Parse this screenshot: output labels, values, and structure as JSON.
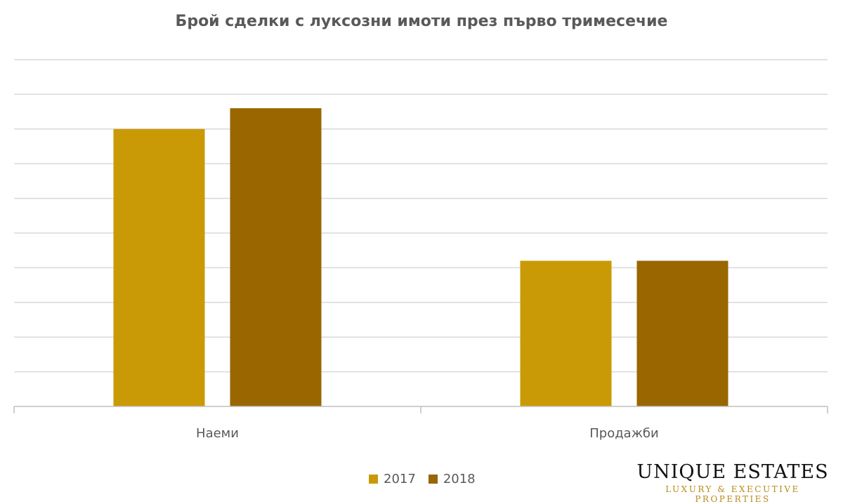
{
  "chart_data": {
    "type": "bar",
    "title": "Брой сделки с луксозни имоти през първо тримесечие",
    "categories": [
      "Наеми",
      "Продажби"
    ],
    "series": [
      {
        "name": "2017",
        "values": [
          8.0,
          4.2
        ],
        "color": "#c99a06"
      },
      {
        "name": "2018",
        "values": [
          8.6,
          4.2
        ],
        "color": "#996600"
      }
    ],
    "ylim": [
      0,
      10
    ],
    "grid": true,
    "legend_position": "bottom"
  },
  "logo": {
    "main": "UNIQUE ESTATES",
    "sub": "LUXURY & EXECUTIVE PROPERTIES"
  }
}
